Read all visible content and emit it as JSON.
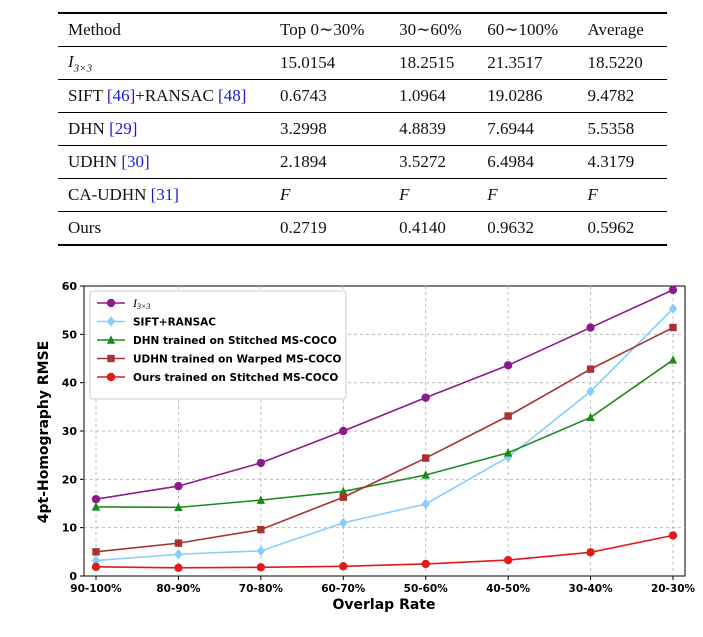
{
  "table": {
    "headers": [
      "Method",
      "Top 0∼30%",
      "30∼60%",
      "60∼100%",
      "Average"
    ],
    "rows": [
      {
        "method": "I",
        "method_sub": "3×3",
        "ref": "",
        "suffix": "",
        "ref2": "",
        "suffix2": "",
        "values": [
          "15.0154",
          "18.2515",
          "21.3517",
          "18.5220"
        ]
      },
      {
        "method": "SIFT ",
        "ref": "[46]",
        "suffix": "+RANSAC ",
        "ref2": "[48]",
        "suffix2": "",
        "values": [
          "0.6743",
          "1.0964",
          "19.0286",
          "9.4782"
        ]
      },
      {
        "method": "DHN ",
        "ref": "[29]",
        "suffix": "",
        "ref2": "",
        "suffix2": "",
        "values": [
          "3.2998",
          "4.8839",
          "7.6944",
          "5.5358"
        ]
      },
      {
        "method": "UDHN ",
        "ref": "[30]",
        "suffix": "",
        "ref2": "",
        "suffix2": "",
        "values": [
          "2.1894",
          "3.5272",
          "6.4984",
          "4.3179"
        ]
      },
      {
        "method": "CA-UDHN ",
        "ref": "[31]",
        "suffix": "",
        "ref2": "",
        "suffix2": "",
        "values": [
          "F",
          "F",
          "F",
          "F"
        ]
      },
      {
        "method": "Ours",
        "ref": "",
        "suffix": "",
        "ref2": "",
        "suffix2": "",
        "values": [
          "0.2719",
          "0.4140",
          "0.9632",
          "0.5962"
        ]
      }
    ]
  },
  "chart_data": {
    "type": "line",
    "xlabel": "Overlap Rate",
    "ylabel": "4pt-Homography RMSE",
    "categories": [
      "90-100%",
      "80-90%",
      "70-80%",
      "60-70%",
      "50-60%",
      "40-50%",
      "30-40%",
      "20-30%"
    ],
    "ylim": [
      0,
      60
    ],
    "yticks": [
      0,
      10,
      20,
      30,
      40,
      50,
      60
    ],
    "grid": true,
    "legend_position": "top-left",
    "series": [
      {
        "name": "I",
        "name_sub": "3×3",
        "color": "#8b1a8b",
        "marker": "circle",
        "values": [
          15.9,
          18.6,
          23.4,
          30.0,
          36.9,
          43.6,
          51.4,
          59.2
        ]
      },
      {
        "name": "SIFT+RANSAC",
        "color": "#87cefa",
        "marker": "diamond",
        "values": [
          3.2,
          4.5,
          5.2,
          11.0,
          14.9,
          24.6,
          38.2,
          55.3
        ]
      },
      {
        "name": "DHN trained on Stitched MS-COCO",
        "color": "#1a8a1a",
        "marker": "triangle",
        "values": [
          14.3,
          14.2,
          15.7,
          17.5,
          20.9,
          25.5,
          32.8,
          44.7
        ]
      },
      {
        "name": "UDHN trained on Warped MS-COCO",
        "color": "#a83232",
        "marker": "square",
        "values": [
          5.0,
          6.8,
          9.6,
          16.3,
          24.4,
          33.1,
          42.8,
          51.4
        ]
      },
      {
        "name": "Ours trained on Stitched MS-COCO",
        "color": "#e31a1a",
        "marker": "circle",
        "values": [
          1.9,
          1.7,
          1.8,
          2.0,
          2.5,
          3.3,
          4.9,
          8.4
        ]
      }
    ]
  }
}
